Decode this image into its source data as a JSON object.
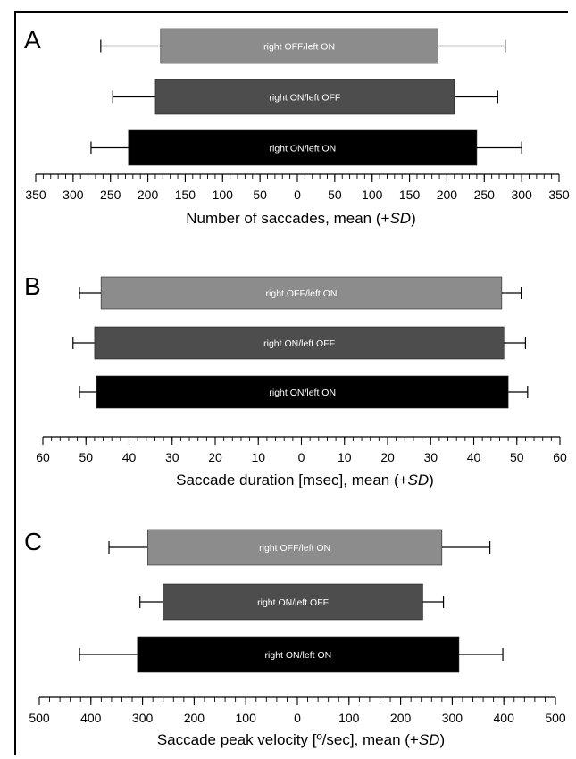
{
  "chart_data": [
    {
      "type": "bar",
      "orientation": "horizontal",
      "panel_label": "A",
      "xlabel_prefix": "Number of saccades, mean (+",
      "xlabel_italic": "SD",
      "xlabel_suffix": ")",
      "xlim": [
        -350,
        350
      ],
      "tick_labels": [
        "350",
        "300",
        "250",
        "200",
        "150",
        "100",
        "50",
        "0",
        "50",
        "100",
        "150",
        "200",
        "250",
        "300",
        "350"
      ],
      "tick_values": [
        -350,
        -300,
        -250,
        -200,
        -150,
        -100,
        -50,
        0,
        50,
        100,
        150,
        200,
        250,
        300,
        350
      ],
      "minor_step": 10,
      "series": [
        {
          "name": "right OFF/left ON",
          "color": "#8c8c8c",
          "left_mean": 183,
          "left_sd": 80,
          "right_mean": 188,
          "right_sd": 90
        },
        {
          "name": "right ON/left OFF",
          "color": "#4d4d4d",
          "left_mean": 190,
          "left_sd": 57,
          "right_mean": 210,
          "right_sd": 58
        },
        {
          "name": "right ON/left ON",
          "color": "#000000",
          "left_mean": 226,
          "left_sd": 50,
          "right_mean": 240,
          "right_sd": 60
        }
      ]
    },
    {
      "type": "bar",
      "orientation": "horizontal",
      "panel_label": "B",
      "xlabel_prefix": "Saccade duration [msec], mean (+",
      "xlabel_italic": "SD",
      "xlabel_suffix": ")",
      "xlim": [
        -60,
        60
      ],
      "tick_labels": [
        "60",
        "50",
        "40",
        "30",
        "20",
        "10",
        "0",
        "10",
        "20",
        "30",
        "40",
        "50",
        "60"
      ],
      "tick_values": [
        -60,
        -50,
        -40,
        -30,
        -20,
        -10,
        0,
        10,
        20,
        30,
        40,
        50,
        60
      ],
      "minor_step": 2,
      "series": [
        {
          "name": "right OFF/left ON",
          "color": "#8c8c8c",
          "left_mean": 46.5,
          "left_sd": 5,
          "right_mean": 46.5,
          "right_sd": 4.5
        },
        {
          "name": "right ON/left OFF",
          "color": "#4d4d4d",
          "left_mean": 48,
          "left_sd": 5,
          "right_mean": 47,
          "right_sd": 5
        },
        {
          "name": "right ON/left ON",
          "color": "#000000",
          "left_mean": 47.5,
          "left_sd": 4,
          "right_mean": 48,
          "right_sd": 4.5
        }
      ]
    },
    {
      "type": "bar",
      "orientation": "horizontal",
      "panel_label": "C",
      "xlabel_prefix": "Saccade peak velocity [º/sec], mean (+",
      "xlabel_italic": "SD",
      "xlabel_suffix": ")",
      "xlim": [
        -500,
        500
      ],
      "tick_labels": [
        "500",
        "400",
        "300",
        "200",
        "100",
        "0",
        "100",
        "200",
        "300",
        "400",
        "500"
      ],
      "tick_values": [
        -500,
        -400,
        -300,
        -200,
        -100,
        0,
        100,
        200,
        300,
        400,
        500
      ],
      "minor_step": 20,
      "series": [
        {
          "name": "right OFF/left ON",
          "color": "#8c8c8c",
          "left_mean": 290,
          "left_sd": 75,
          "right_mean": 280,
          "right_sd": 93
        },
        {
          "name": "right ON/left OFF",
          "color": "#4d4d4d",
          "left_mean": 260,
          "left_sd": 45,
          "right_mean": 243,
          "right_sd": 40
        },
        {
          "name": "right ON/left ON",
          "color": "#000000",
          "left_mean": 310,
          "left_sd": 112,
          "right_mean": 313,
          "right_sd": 85
        }
      ]
    }
  ]
}
